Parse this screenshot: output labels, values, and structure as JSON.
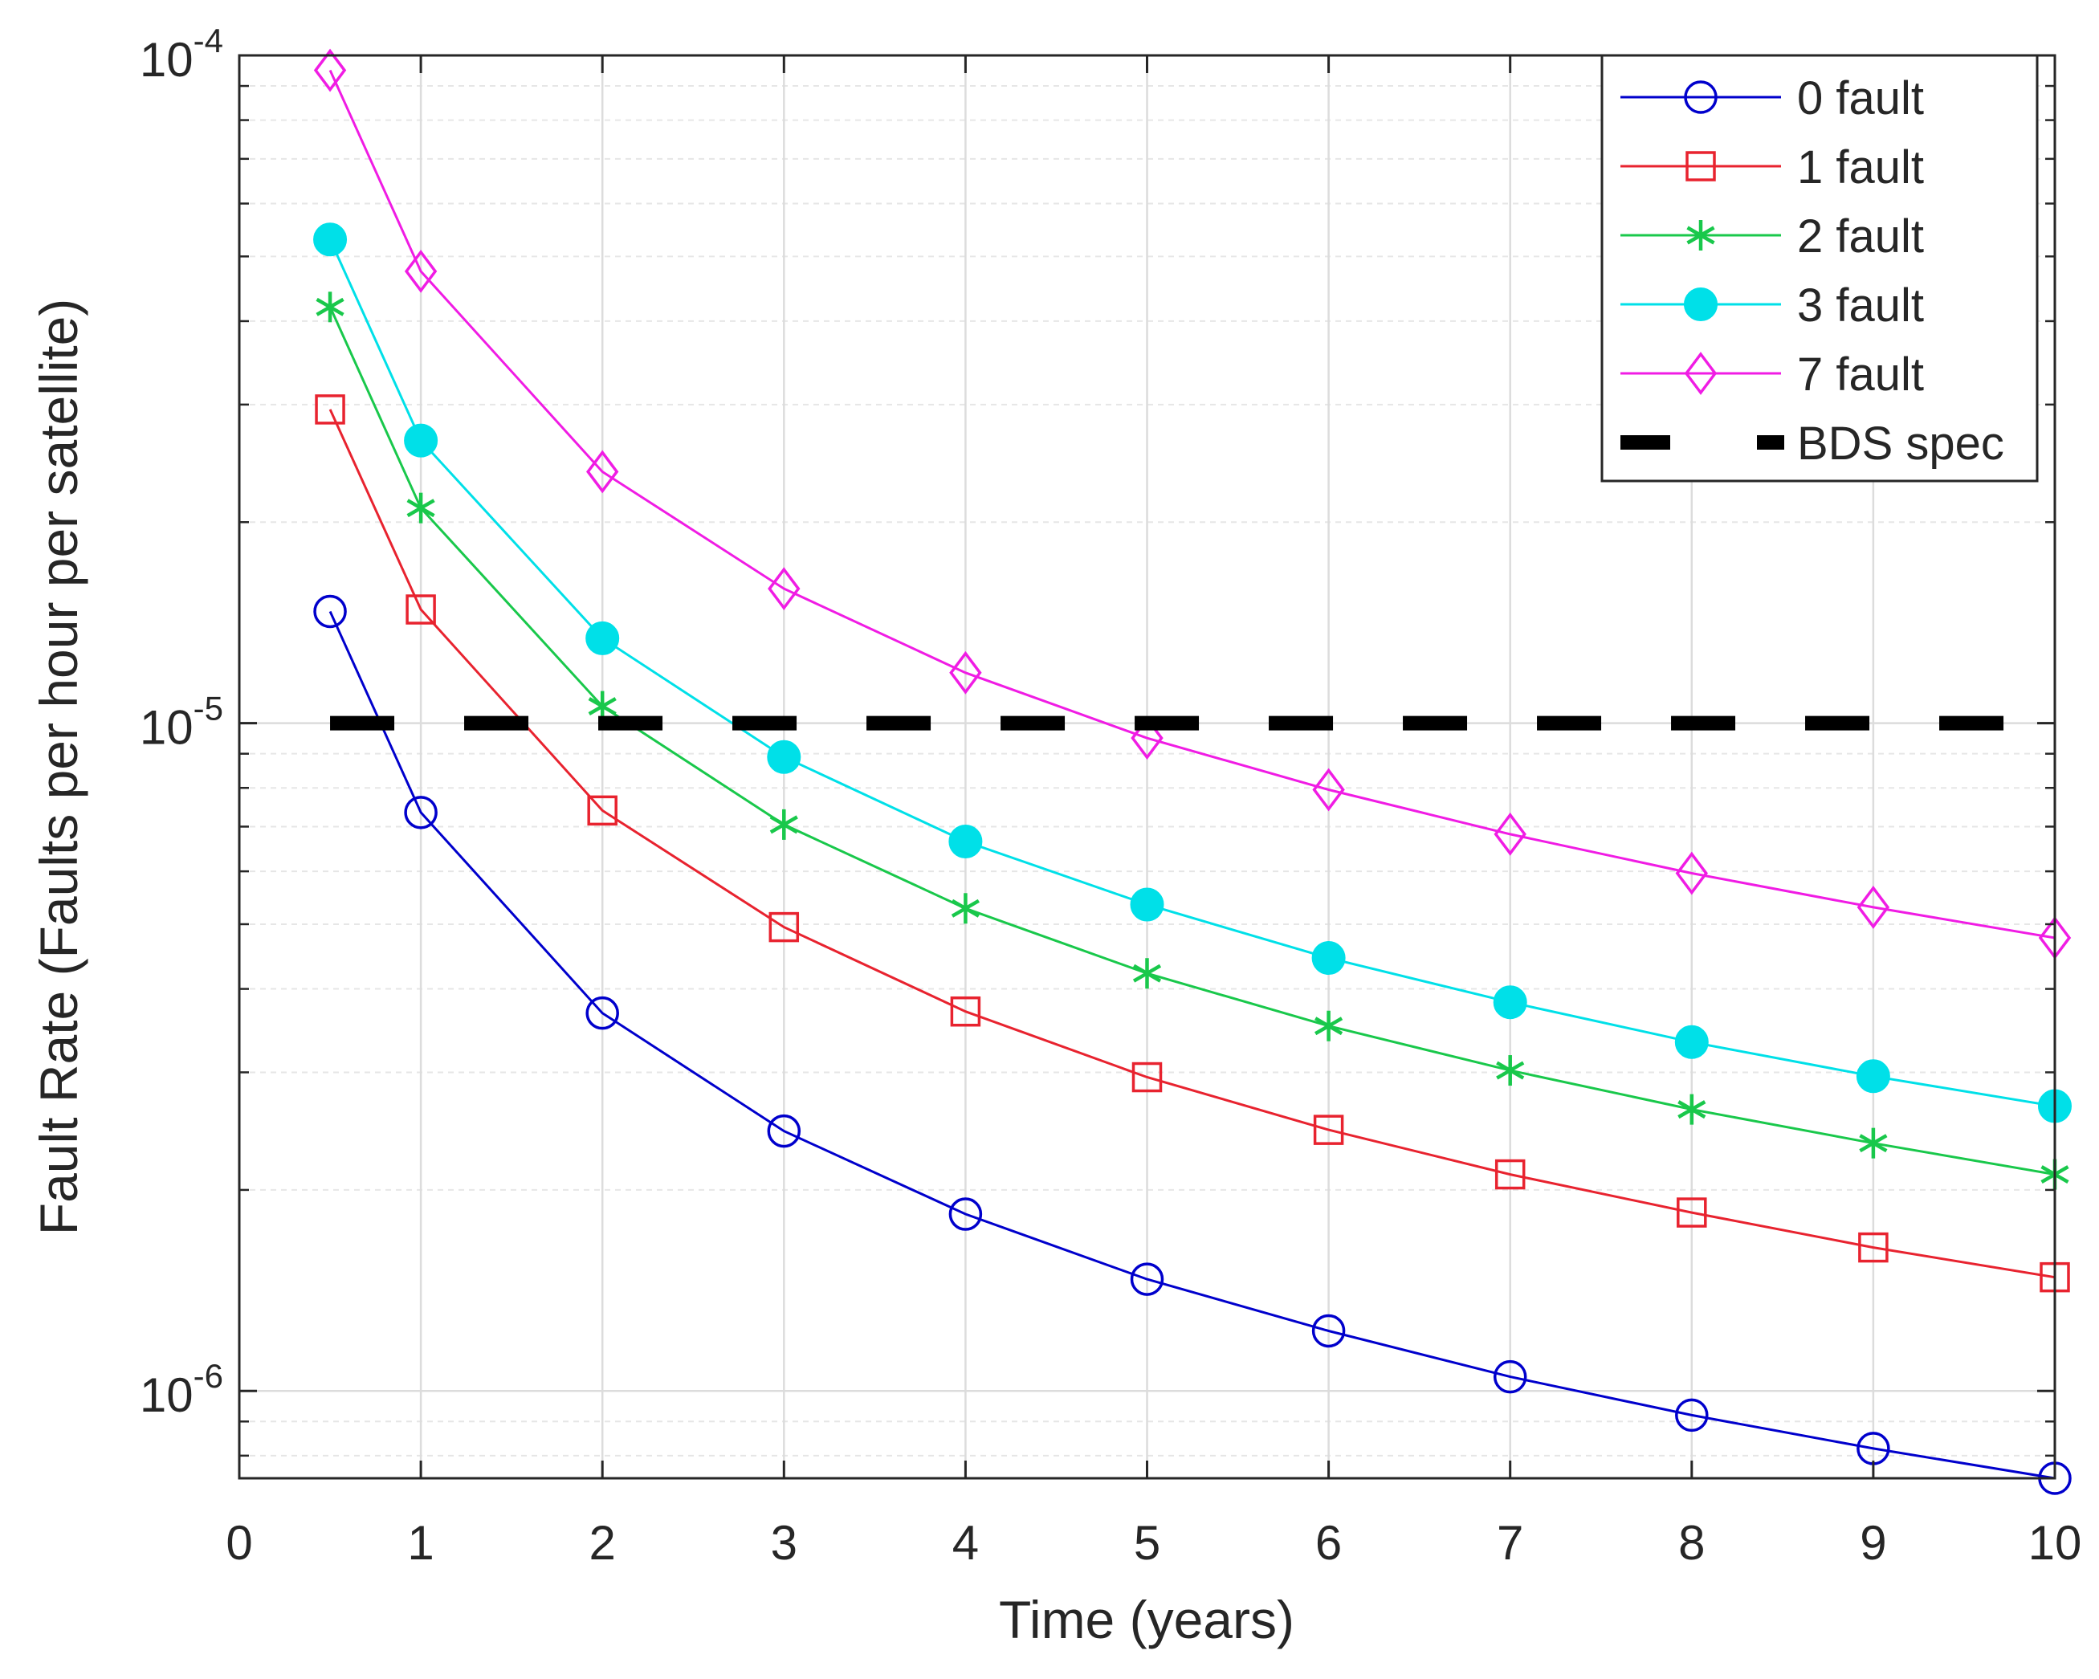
{
  "chart_data": {
    "type": "line",
    "title": "",
    "xlabel": "Time (years)",
    "ylabel": "Fault Rate (Faults per hour per satellite)",
    "xscale": "linear",
    "yscale": "log",
    "xlim": [
      0,
      10
    ],
    "ylim": [
      7.4e-07,
      0.0001
    ],
    "xticks": [
      0,
      1,
      2,
      3,
      4,
      5,
      6,
      7,
      8,
      9,
      10
    ],
    "xtick_labels": [
      "0",
      "1",
      "2",
      "3",
      "4",
      "5",
      "6",
      "7",
      "8",
      "9",
      "10"
    ],
    "yticks": [
      {
        "value": 1e-06,
        "base": "10",
        "exponent": "-6"
      },
      {
        "value": 1e-05,
        "base": "10",
        "exponent": "-5"
      },
      {
        "value": 0.0001,
        "base": "10",
        "exponent": "-4"
      }
    ],
    "grid": true,
    "legend_position": "top-right",
    "x": [
      0.5,
      1,
      2,
      3,
      4,
      5,
      6,
      7,
      8,
      9,
      10
    ],
    "series": [
      {
        "name": "0 fault",
        "color": "#0000cc",
        "marker": "circle-open",
        "values": [
          1.47e-05,
          7.35e-06,
          3.68e-06,
          2.45e-06,
          1.84e-06,
          1.47e-06,
          1.23e-06,
          1.05e-06,
          9.2e-07,
          8.2e-07,
          7.4e-07
        ]
      },
      {
        "name": "1 fault",
        "color": "#e8232f",
        "marker": "square-open",
        "values": [
          2.95e-05,
          1.48e-05,
          7.4e-06,
          4.95e-06,
          3.7e-06,
          2.95e-06,
          2.46e-06,
          2.11e-06,
          1.85e-06,
          1.64e-06,
          1.48e-06
        ]
      },
      {
        "name": "2 fault",
        "color": "#19c84b",
        "marker": "asterisk",
        "values": [
          4.2e-05,
          2.1e-05,
          1.06e-05,
          7.05e-06,
          5.28e-06,
          4.22e-06,
          3.52e-06,
          3.02e-06,
          2.64e-06,
          2.35e-06,
          2.11e-06
        ]
      },
      {
        "name": "3 fault",
        "color": "#00e0e8",
        "marker": "circle-filled",
        "values": [
          5.3e-05,
          2.65e-05,
          1.34e-05,
          8.9e-06,
          6.65e-06,
          5.35e-06,
          4.45e-06,
          3.82e-06,
          3.33e-06,
          2.96e-06,
          2.67e-06
        ]
      },
      {
        "name": "7 fault",
        "color": "#f01ce4",
        "marker": "diamond-open",
        "values": [
          9.5e-05,
          4.75e-05,
          2.38e-05,
          1.59e-05,
          1.19e-05,
          9.5e-06,
          7.95e-06,
          6.82e-06,
          5.96e-06,
          5.3e-06,
          4.77e-06
        ]
      }
    ],
    "reference_lines": [
      {
        "name": "BDS spec",
        "color": "#000000",
        "style": "dashed",
        "value": 1e-05,
        "x_range": [
          0.5,
          10
        ]
      }
    ]
  }
}
